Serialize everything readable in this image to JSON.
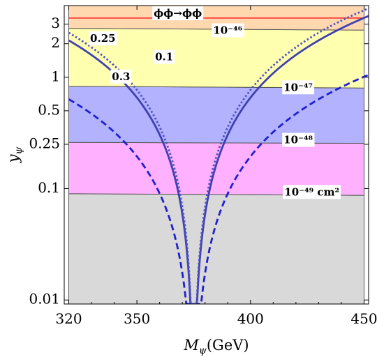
{
  "chart_data": {
    "type": "line",
    "xlabel": "M",
    "xlabel_sub": "ψ",
    "xlabel_unit": "(GeV)",
    "ylabel": "y",
    "ylabel_sub": "ψ",
    "xlim": [
      318,
      452
    ],
    "ylim": [
      0.0092,
      4.4
    ],
    "yscale": "log",
    "x_ticks": [
      {
        "value": 320,
        "label": "320"
      },
      {
        "value": 350,
        "label": "350"
      },
      {
        "value": 400,
        "label": "400"
      },
      {
        "value": 450,
        "label": "450"
      }
    ],
    "y_ticks": [
      {
        "value": 0.01,
        "label": "0.01"
      },
      {
        "value": 0.1,
        "label": "0.1"
      },
      {
        "value": 0.25,
        "label": "0.25"
      },
      {
        "value": 0.5,
        "label": "0.5"
      },
      {
        "value": 1,
        "label": "1"
      },
      {
        "value": 2,
        "label": "2"
      },
      {
        "value": 3,
        "label": "3"
      }
    ],
    "x_range": [
      320,
      450
    ],
    "bands": [
      {
        "label": "10⁻⁴⁹ cm²",
        "color": "#d9d9d9",
        "y_left": [
          0.0092,
          0.09
        ],
        "y_right": [
          0.0092,
          0.087
        ],
        "label_x": 427,
        "label_y": 0.092
      },
      {
        "label": "10⁻⁴⁸",
        "color": "#ffb0ff",
        "y_left": [
          0.09,
          0.26
        ],
        "y_right": [
          0.087,
          0.255
        ],
        "label_x": 421,
        "label_y": 0.27
      },
      {
        "label": "10⁻⁴⁷",
        "color": "#b2b2ff",
        "y_left": [
          0.26,
          0.83
        ],
        "y_right": [
          0.255,
          0.8
        ],
        "label_x": 421,
        "label_y": 0.8
      },
      {
        "label": "10⁻⁴⁶",
        "color": "#ffffb0",
        "y_left": [
          0.83,
          2.75
        ],
        "y_right": [
          0.8,
          2.65
        ],
        "label_x": 390,
        "label_y": 2.6
      },
      {
        "label": "ϕϕ→ϕϕ",
        "color": "#ffd8b0",
        "y_left": [
          2.75,
          4.4
        ],
        "y_right": [
          2.65,
          4.4
        ],
        "label_x": 368,
        "label_y": 3.7
      }
    ],
    "perturbative_line": {
      "y": 3.4,
      "color": "#ff2020"
    },
    "center_mass": 375,
    "series": [
      {
        "label": "0.1",
        "style": "dashed",
        "color": "#2020d0",
        "width_factor": 0.2,
        "label_x": 362,
        "label_y": 1.5
      },
      {
        "label": "0.25",
        "style": "solid",
        "color": "#4040b0",
        "width_factor": 0.45,
        "label_x": 335,
        "label_y": 2.2
      },
      {
        "label": "0.3",
        "style": "dotted",
        "color": "#5050c0",
        "width_factor": 0.5,
        "label_x": 343,
        "label_y": 1.0
      }
    ]
  }
}
